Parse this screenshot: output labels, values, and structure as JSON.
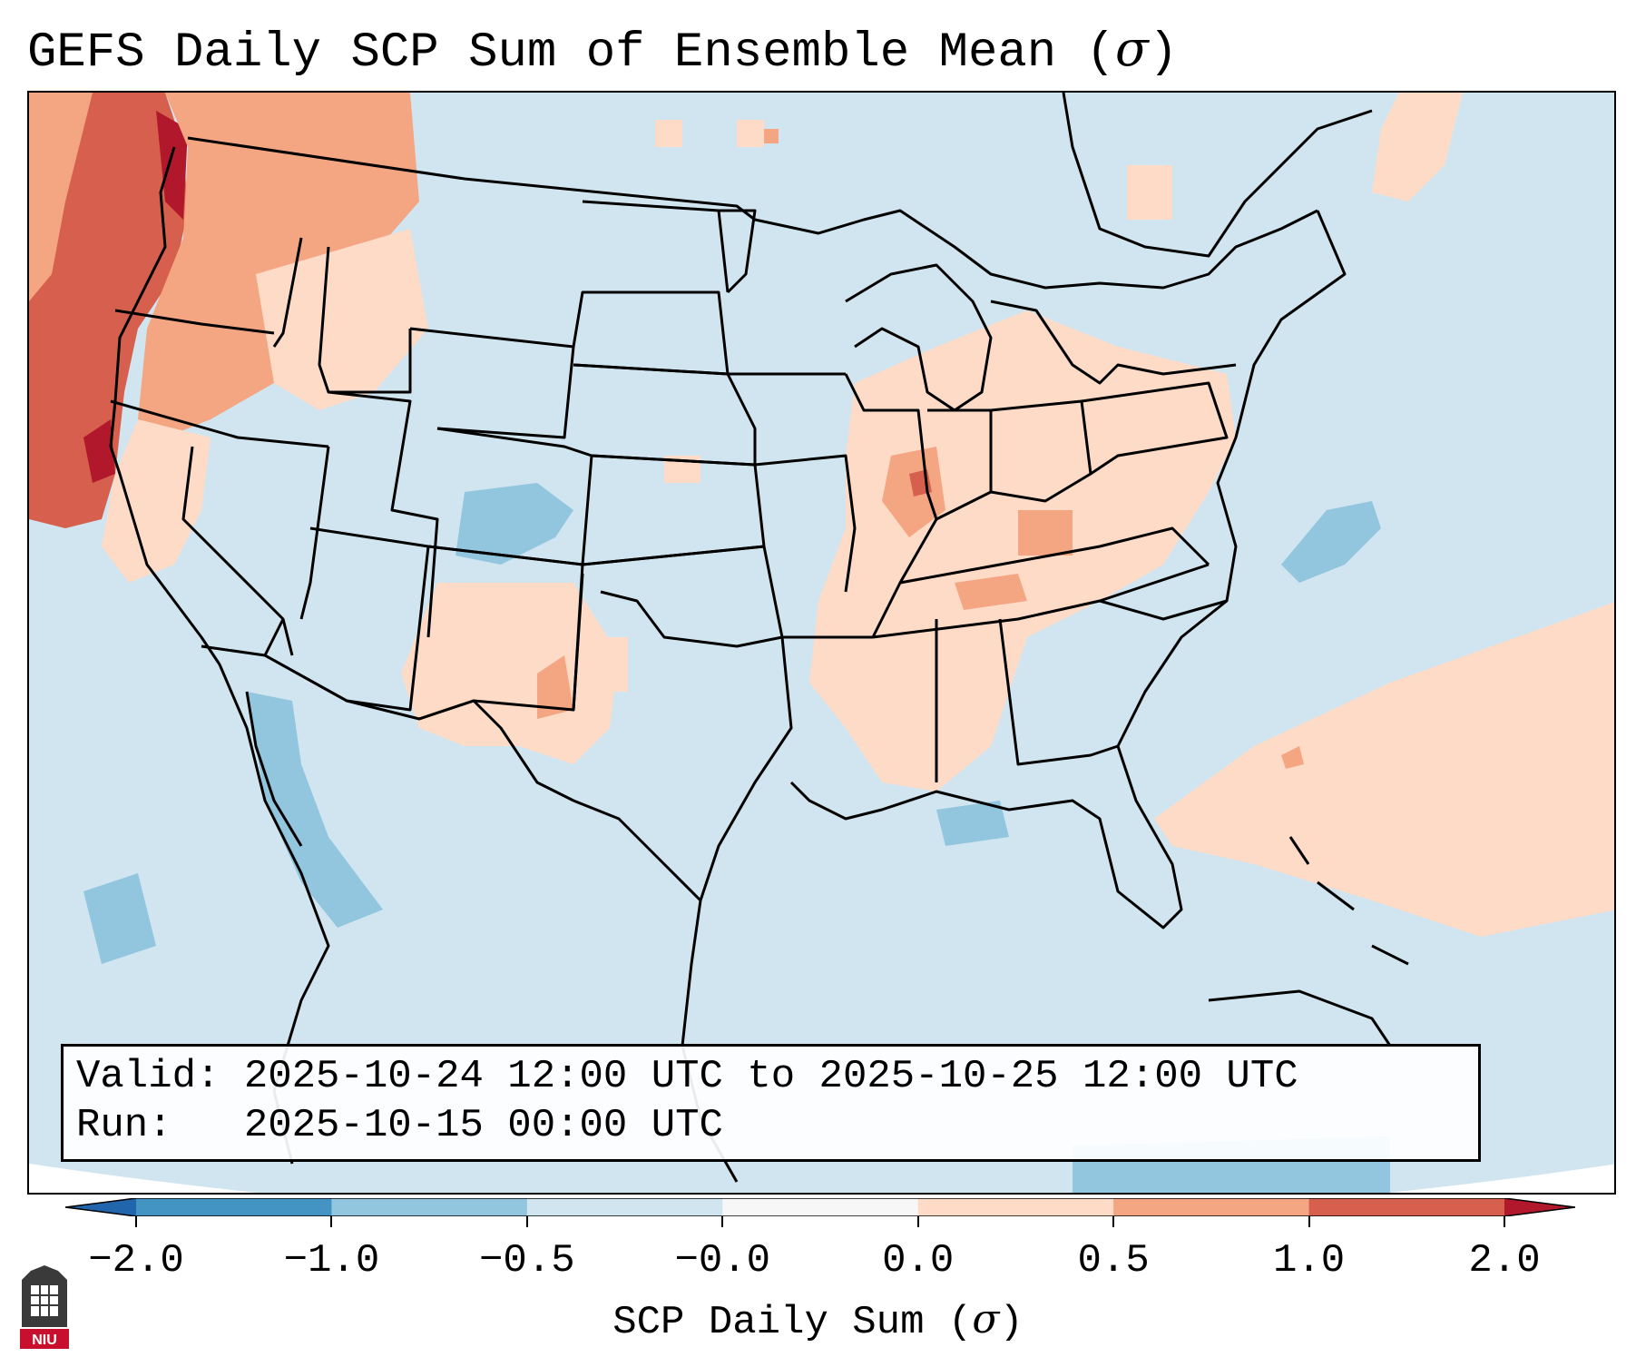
{
  "title": {
    "text": "GEFS Daily SCP Sum of Ensemble Mean (",
    "symbol": "σ",
    "close": ")"
  },
  "info": {
    "valid_label": "Valid:",
    "valid_value": "2025-10-24 12:00 UTC to 2025-10-25 12:00 UTC",
    "run_label": "Run:",
    "run_value": "2025-10-15 00:00 UTC"
  },
  "colorbar": {
    "label_text": "SCP Daily Sum (",
    "label_symbol": "σ",
    "label_close": ")",
    "ticks": [
      "−2.0",
      "−1.0",
      "−0.5",
      "−0.0",
      "0.0",
      "0.5",
      "1.0",
      "2.0"
    ],
    "colors": [
      "#4393c3",
      "#92c5de",
      "#d1e5f0",
      "#f7f7f7",
      "#fddbc7",
      "#f4a582",
      "#d6604d"
    ],
    "extend_low_color": "#2166ac",
    "extend_high_color": "#b2182b"
  },
  "map": {
    "background_color": "#d1e5f0",
    "boundary_color": "#000000",
    "regions": [
      {
        "name": "pacific-northwest-anomaly",
        "category": "1.0 to 2.0"
      },
      {
        "name": "midwest-southeast-anomaly",
        "category": "0.0 to 0.5"
      },
      {
        "name": "colorado-negative-anomaly",
        "category": "-1.0 to -0.5"
      },
      {
        "name": "atlantic-positive-anomaly",
        "category": "0.0 to 0.5"
      }
    ]
  },
  "logo": {
    "text": "NIU"
  }
}
